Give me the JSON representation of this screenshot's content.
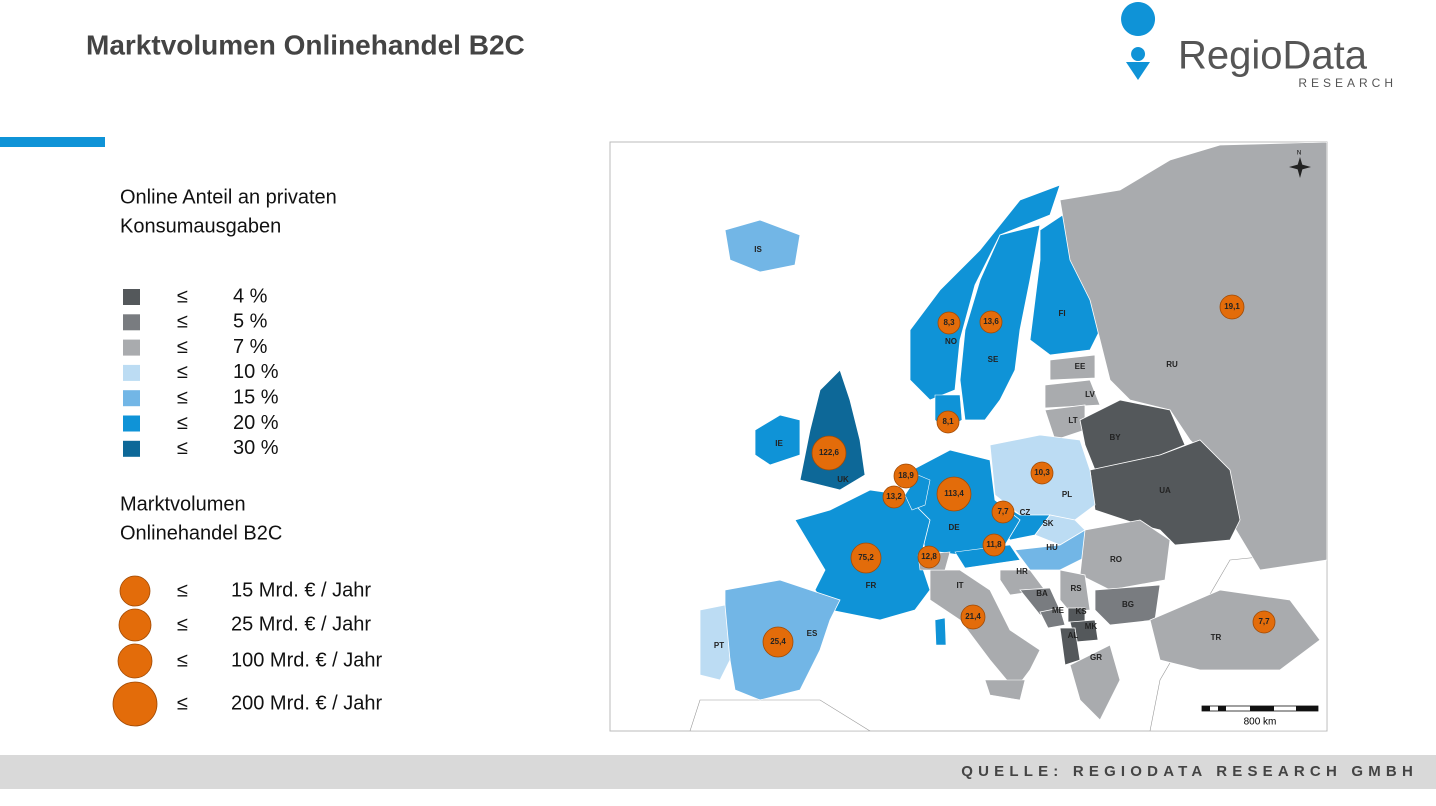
{
  "header": {
    "title": "Marktvolumen Onlinehandel B2C",
    "logo_name": "RegioData",
    "logo_sub": "RESEARCH"
  },
  "legend": {
    "share_title_lines": [
      "Online Anteil an privaten",
      "Konsumausgaben"
    ],
    "share_classes": [
      {
        "symbol": "≤",
        "label": "4 %",
        "color": "#54585b"
      },
      {
        "symbol": "≤",
        "label": "5 %",
        "color": "#797c80"
      },
      {
        "symbol": "≤",
        "label": "7 %",
        "color": "#a9abae"
      },
      {
        "symbol": "≤",
        "label": "10 %",
        "color": "#bcdcf3"
      },
      {
        "symbol": "≤",
        "label": "15 %",
        "color": "#72b6e6"
      },
      {
        "symbol": "≤",
        "label": "20 %",
        "color": "#0f93d7"
      },
      {
        "symbol": "≤",
        "label": "30 %",
        "color": "#0d6898"
      }
    ],
    "volume_title_lines": [
      "Marktvolumen",
      "Onlinehandel B2C"
    ],
    "volume_color": "#e36c0a",
    "volume_classes": [
      {
        "symbol": "≤",
        "label": "15 Mrd. € / Jahr"
      },
      {
        "symbol": "≤",
        "label": "25 Mrd. € / Jahr"
      },
      {
        "symbol": "≤",
        "label": "100 Mrd. € / Jahr"
      },
      {
        "symbol": "≤",
        "label": "200 Mrd. € / Jahr"
      }
    ]
  },
  "map": {
    "north": "N",
    "scale": "800 km",
    "countries": [
      {
        "code": "IS",
        "class": 4
      },
      {
        "code": "NO",
        "class": 5
      },
      {
        "code": "SE",
        "class": 5
      },
      {
        "code": "FI",
        "class": 5
      },
      {
        "code": "RU",
        "class": 2
      },
      {
        "code": "EE",
        "class": 2
      },
      {
        "code": "LV",
        "class": 2
      },
      {
        "code": "LT",
        "class": 2
      },
      {
        "code": "BY",
        "class": 0
      },
      {
        "code": "UA",
        "class": 0
      },
      {
        "code": "PL",
        "class": 3
      },
      {
        "code": "CZ",
        "class": 5
      },
      {
        "code": "SK",
        "class": 3
      },
      {
        "code": "HU",
        "class": 4
      },
      {
        "code": "RO",
        "class": 2
      },
      {
        "code": "BG",
        "class": 1
      },
      {
        "code": "DE",
        "class": 5
      },
      {
        "code": "FR",
        "class": 5
      },
      {
        "code": "ES",
        "class": 4
      },
      {
        "code": "PT",
        "class": 3
      },
      {
        "code": "IT",
        "class": 2
      },
      {
        "code": "UK",
        "class": 6
      },
      {
        "code": "IE",
        "class": 5
      },
      {
        "code": "HR",
        "class": 2
      },
      {
        "code": "BA",
        "class": 1
      },
      {
        "code": "RS",
        "class": 2
      },
      {
        "code": "ME",
        "class": 1
      },
      {
        "code": "KS",
        "class": 0
      },
      {
        "code": "MK",
        "class": 0
      },
      {
        "code": "AL",
        "class": 0
      },
      {
        "code": "GR",
        "class": 2
      },
      {
        "code": "TR",
        "class": 2
      }
    ],
    "bubbles": [
      {
        "label": "8,3",
        "class": 0
      },
      {
        "label": "13,6",
        "class": 0
      },
      {
        "label": "8,1",
        "class": 0
      },
      {
        "label": "10,3",
        "class": 0
      },
      {
        "label": "18,9",
        "class": 1
      },
      {
        "label": "13,2",
        "class": 0
      },
      {
        "label": "7,7",
        "class": 0
      },
      {
        "label": "11,8",
        "class": 0
      },
      {
        "label": "12,8",
        "class": 0
      },
      {
        "label": "21,4",
        "class": 1
      },
      {
        "label": "19,1",
        "class": 1
      },
      {
        "label": "7,7",
        "class": 0
      },
      {
        "label": "25,4",
        "class": 2
      },
      {
        "label": "75,2",
        "class": 2
      },
      {
        "label": "113,4",
        "class": 3
      },
      {
        "label": "122,6",
        "class": 3
      }
    ]
  },
  "footer": {
    "source": "QUELLE: REGIODATA RESEARCH GMBH"
  }
}
